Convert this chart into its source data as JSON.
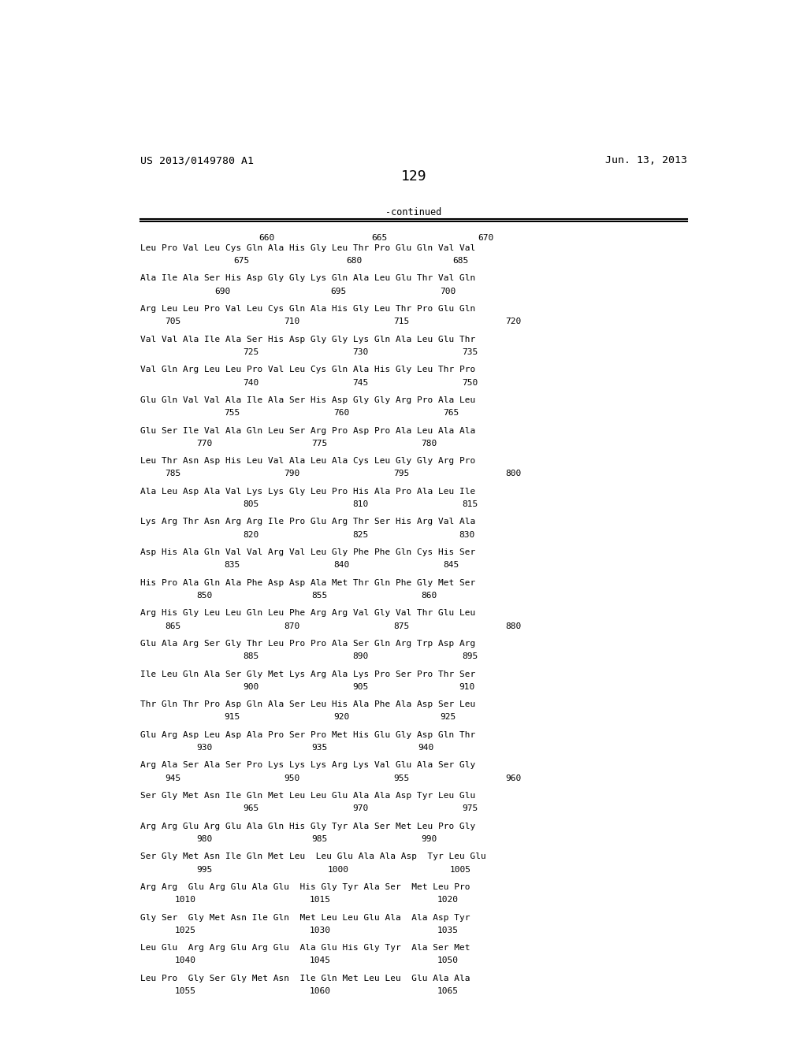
{
  "header_left": "US 2013/0149780 A1",
  "header_right": "Jun. 13, 2013",
  "page_number": "129",
  "continued_text": "-continued",
  "background_color": "#ffffff",
  "text_color": "#000000",
  "font_size": 8.0,
  "header_font_size": 9.5,
  "page_num_font_size": 13,
  "ruler": [
    [
      "660",
      0.265
    ],
    [
      "665",
      0.445
    ],
    [
      "670",
      0.615
    ]
  ],
  "blocks": [
    {
      "seq": "Leu Pro Val Leu Cys Gln Ala His Gly Leu Thr Pro Glu Gln Val Val",
      "nums": [
        [
          "675",
          0.225
        ],
        [
          "680",
          0.405
        ],
        [
          "685",
          0.575
        ]
      ]
    },
    {
      "seq": "Ala Ile Ala Ser His Asp Gly Gly Lys Gln Ala Leu Glu Thr Val Gln",
      "nums": [
        [
          "690",
          0.195
        ],
        [
          "695",
          0.38
        ],
        [
          "700",
          0.555
        ]
      ]
    },
    {
      "seq": "Arg Leu Leu Pro Val Leu Cys Gln Ala His Gly Leu Thr Pro Glu Gln",
      "nums": [
        [
          "705",
          0.115
        ],
        [
          "710",
          0.305
        ],
        [
          "715",
          0.48
        ],
        [
          "720",
          0.66
        ]
      ]
    },
    {
      "seq": "Val Val Ala Ile Ala Ser His Asp Gly Gly Lys Gln Ala Leu Glu Thr",
      "nums": [
        [
          "725",
          0.24
        ],
        [
          "730",
          0.415
        ],
        [
          "735",
          0.59
        ]
      ]
    },
    {
      "seq": "Val Gln Arg Leu Leu Pro Val Leu Cys Gln Ala His Gly Leu Thr Pro",
      "nums": [
        [
          "740",
          0.24
        ],
        [
          "745",
          0.415
        ],
        [
          "750",
          0.59
        ]
      ]
    },
    {
      "seq": "Glu Gln Val Val Ala Ile Ala Ser His Asp Gly Gly Arg Pro Ala Leu",
      "nums": [
        [
          "755",
          0.21
        ],
        [
          "760",
          0.385
        ],
        [
          "765",
          0.56
        ]
      ]
    },
    {
      "seq": "Glu Ser Ile Val Ala Gln Leu Ser Arg Pro Asp Pro Ala Leu Ala Ala",
      "nums": [
        [
          "770",
          0.165
        ],
        [
          "775",
          0.35
        ],
        [
          "780",
          0.525
        ]
      ]
    },
    {
      "seq": "Leu Thr Asn Asp His Leu Val Ala Leu Ala Cys Leu Gly Gly Arg Pro",
      "nums": [
        [
          "785",
          0.115
        ],
        [
          "790",
          0.305
        ],
        [
          "795",
          0.48
        ],
        [
          "800",
          0.66
        ]
      ]
    },
    {
      "seq": "Ala Leu Asp Ala Val Lys Lys Gly Leu Pro His Ala Pro Ala Leu Ile",
      "nums": [
        [
          "805",
          0.24
        ],
        [
          "810",
          0.415
        ],
        [
          "815",
          0.59
        ]
      ]
    },
    {
      "seq": "Lys Arg Thr Asn Arg Arg Ile Pro Glu Arg Thr Ser His Arg Val Ala",
      "nums": [
        [
          "820",
          0.24
        ],
        [
          "825",
          0.415
        ],
        [
          "830",
          0.585
        ]
      ]
    },
    {
      "seq": "Asp His Ala Gln Val Val Arg Val Leu Gly Phe Phe Gln Cys His Ser",
      "nums": [
        [
          "835",
          0.21
        ],
        [
          "840",
          0.385
        ],
        [
          "845",
          0.56
        ]
      ]
    },
    {
      "seq": "His Pro Ala Gln Ala Phe Asp Asp Ala Met Thr Gln Phe Gly Met Ser",
      "nums": [
        [
          "850",
          0.165
        ],
        [
          "855",
          0.35
        ],
        [
          "860",
          0.525
        ]
      ]
    },
    {
      "seq": "Arg His Gly Leu Leu Gln Leu Phe Arg Arg Val Gly Val Thr Glu Leu",
      "nums": [
        [
          "865",
          0.115
        ],
        [
          "870",
          0.305
        ],
        [
          "875",
          0.48
        ],
        [
          "880",
          0.66
        ]
      ]
    },
    {
      "seq": "Glu Ala Arg Ser Gly Thr Leu Pro Pro Ala Ser Gln Arg Trp Asp Arg",
      "nums": [
        [
          "885",
          0.24
        ],
        [
          "890",
          0.415
        ],
        [
          "895",
          0.59
        ]
      ]
    },
    {
      "seq": "Ile Leu Gln Ala Ser Gly Met Lys Arg Ala Lys Pro Ser Pro Thr Ser",
      "nums": [
        [
          "900",
          0.24
        ],
        [
          "905",
          0.415
        ],
        [
          "910",
          0.585
        ]
      ]
    },
    {
      "seq": "Thr Gln Thr Pro Asp Gln Ala Ser Leu His Ala Phe Ala Asp Ser Leu",
      "nums": [
        [
          "915",
          0.21
        ],
        [
          "920",
          0.385
        ],
        [
          "925",
          0.555
        ]
      ]
    },
    {
      "seq": "Glu Arg Asp Leu Asp Ala Pro Ser Pro Met His Glu Gly Asp Gln Thr",
      "nums": [
        [
          "930",
          0.165
        ],
        [
          "935",
          0.35
        ],
        [
          "940",
          0.52
        ]
      ]
    },
    {
      "seq": "Arg Ala Ser Ala Ser Pro Lys Lys Lys Arg Lys Val Glu Ala Ser Gly",
      "nums": [
        [
          "945",
          0.115
        ],
        [
          "950",
          0.305
        ],
        [
          "955",
          0.48
        ],
        [
          "960",
          0.66
        ]
      ]
    },
    {
      "seq": "Ser Gly Met Asn Ile Gln Met Leu Leu Glu Ala Ala Asp Tyr Leu Glu",
      "nums": [
        [
          "965",
          0.24
        ],
        [
          "970",
          0.415
        ],
        [
          "975",
          0.59
        ]
      ]
    },
    {
      "seq": "Arg Arg Glu Arg Glu Ala Gln His Gly Tyr Ala Ser Met Leu Pro Gly",
      "nums": [
        [
          "980",
          0.165
        ],
        [
          "985",
          0.35
        ],
        [
          "990",
          0.525
        ]
      ]
    },
    {
      "seq": "Ser Gly Met Asn Ile Gln Met Leu  Leu Glu Ala Ala Asp  Tyr Leu Glu",
      "nums": [
        [
          "995",
          0.165
        ],
        [
          "1000",
          0.38
        ],
        [
          "1005",
          0.575
        ]
      ]
    },
    {
      "seq": "Arg Arg  Glu Arg Glu Ala Glu  His Gly Tyr Ala Ser  Met Leu Pro",
      "nums": [
        [
          "1010",
          0.135
        ],
        [
          "1015",
          0.35
        ],
        [
          "1020",
          0.555
        ]
      ]
    },
    {
      "seq": "Gly Ser  Gly Met Asn Ile Gln  Met Leu Leu Glu Ala  Ala Asp Tyr",
      "nums": [
        [
          "1025",
          0.135
        ],
        [
          "1030",
          0.35
        ],
        [
          "1035",
          0.555
        ]
      ]
    },
    {
      "seq": "Leu Glu  Arg Arg Glu Arg Glu  Ala Glu His Gly Tyr  Ala Ser Met",
      "nums": [
        [
          "1040",
          0.135
        ],
        [
          "1045",
          0.35
        ],
        [
          "1050",
          0.555
        ]
      ]
    },
    {
      "seq": "Leu Pro  Gly Ser Gly Met Asn  Ile Gln Met Leu Leu  Glu Ala Ala",
      "nums": [
        [
          "1055",
          0.135
        ],
        [
          "1060",
          0.35
        ],
        [
          "1065",
          0.555
        ]
      ]
    }
  ]
}
